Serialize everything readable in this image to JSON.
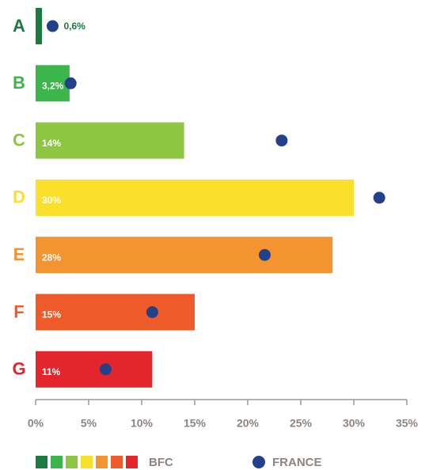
{
  "chart_data": {
    "type": "bar-dot",
    "orientation": "horizontal",
    "categories": [
      "A",
      "B",
      "C",
      "D",
      "E",
      "F",
      "G"
    ],
    "series": [
      {
        "name": "BFC",
        "colors": [
          "#1b7a3e",
          "#3cb54a",
          "#8dc641",
          "#fbe02b",
          "#f39430",
          "#ef5a2b",
          "#e2262b"
        ],
        "values": [
          0.6,
          3.2,
          14,
          30,
          28,
          15,
          11
        ],
        "value_labels": [
          "0,6%",
          "3,2%",
          "14%",
          "30%",
          "28%",
          "15%",
          "11%"
        ]
      },
      {
        "name": "FRANCE",
        "color": "#23418b",
        "values": [
          1.6,
          3.3,
          23.2,
          32.4,
          21.6,
          11.0,
          6.6
        ]
      }
    ],
    "xlim": [
      0,
      35
    ],
    "xticks": [
      {
        "value": 0,
        "label": "0%"
      },
      {
        "value": 5,
        "label": "5%"
      },
      {
        "value": 10,
        "label": "10%"
      },
      {
        "value": 15,
        "label": "15%"
      },
      {
        "value": 20,
        "label": "20%"
      },
      {
        "value": 25,
        "label": "25%"
      },
      {
        "value": 30,
        "label": "30%"
      },
      {
        "value": 35,
        "label": "35%"
      }
    ],
    "grid": false
  }
}
